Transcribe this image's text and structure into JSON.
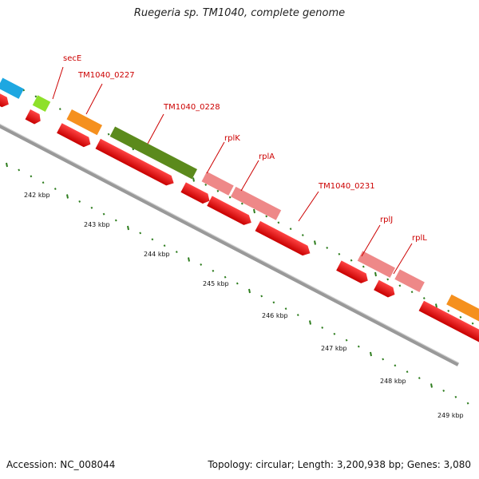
{
  "title": "Ruegeria sp. TM1040, complete genome",
  "accession": "Accession: NC_008044",
  "summary": "Topology: circular; Length: 3,200,938 bp; Genes: 3,080",
  "colors": {
    "label_red": "#cc0000",
    "cds_red": "#ee1111",
    "backbone": "#888888",
    "tick_green": "#2e7d1e"
  },
  "kbp_labels": [
    "242 kbp",
    "243 kbp",
    "244 kbp",
    "245 kbp",
    "246 kbp",
    "247 kbp",
    "248 kbp",
    "249 kbp"
  ],
  "gene_labels": [
    {
      "id": "secE",
      "text": "secE"
    },
    {
      "id": "tm0227",
      "text": "TM1040_0227"
    },
    {
      "id": "tm0228",
      "text": "TM1040_0228"
    },
    {
      "id": "rplk",
      "text": "rplK"
    },
    {
      "id": "rpla",
      "text": "rplA"
    },
    {
      "id": "tm0231",
      "text": "TM1040_0231"
    },
    {
      "id": "rplj",
      "text": "rplJ"
    },
    {
      "id": "rpll",
      "text": "rplL"
    }
  ],
  "feature_colors": {
    "cyan": "#1ea7e1",
    "lime": "#8ee02a",
    "orange": "#f5901e",
    "olive": "#5b8a1c",
    "pink": "#ee8888",
    "red": "#ee1111"
  }
}
